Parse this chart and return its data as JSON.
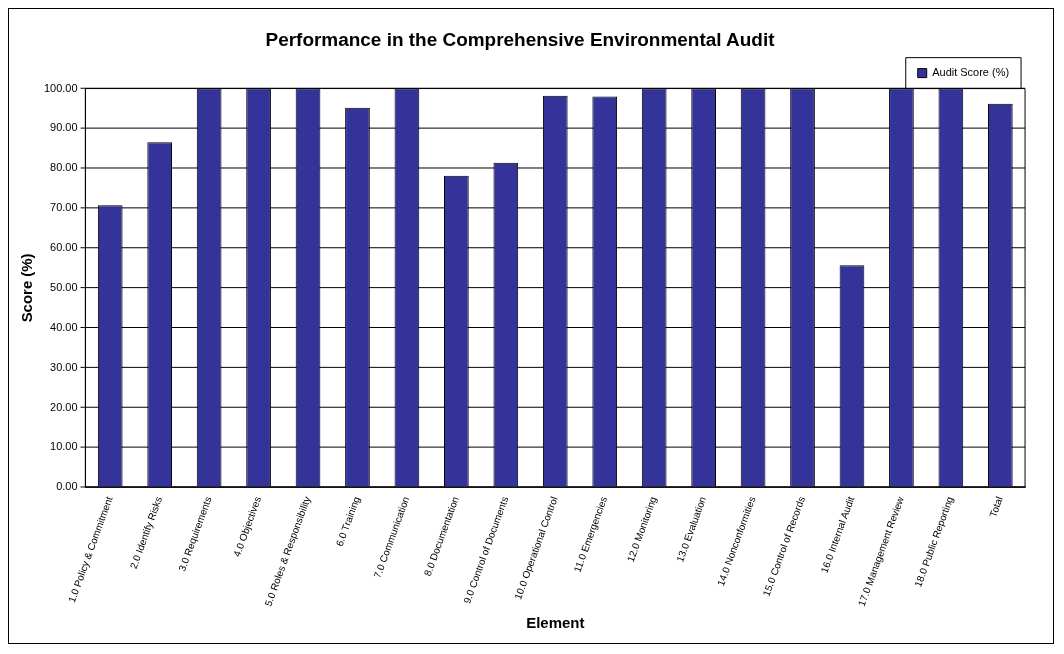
{
  "chart_data": {
    "type": "bar",
    "title": "Performance in the Comprehensive Environmental Audit",
    "xlabel": "Element",
    "ylabel": "Score (%)",
    "categories": [
      "1.0 Policy & Commitment",
      "2.0 Identify Risks",
      "3.0 Requirements",
      "4.0 Objectives",
      "5.0 Roles & Responsibility",
      "6.0 Training",
      "7.0 Communication",
      "8.0 Documentation",
      "9.0 Control of Documents",
      "10.0 Operational Control",
      "11.0 Emergencies",
      "12.0 Monitoring",
      "13.0 Evaluation",
      "14.0 Nonconformities",
      "15.0 Control of Records",
      "16.0 Internal Audit",
      "17.0 Management Review",
      "18.0 Public Reporting",
      "Total"
    ],
    "series": [
      {
        "name": "Audit Score (%)",
        "color": "#333399",
        "values": [
          70.7,
          86.5,
          100,
          100,
          100,
          95.2,
          100,
          78.1,
          81.4,
          98.2,
          98.0,
          100,
          100,
          100,
          100,
          55.7,
          100,
          100,
          96.2
        ]
      }
    ],
    "ylim": [
      0,
      100
    ],
    "yticks": [
      {
        "value": 0,
        "label": "0.00"
      },
      {
        "value": 10,
        "label": "10.00"
      },
      {
        "value": 20,
        "label": "20.00"
      },
      {
        "value": 30,
        "label": "30.00"
      },
      {
        "value": 40,
        "label": "40.00"
      },
      {
        "value": 50,
        "label": "50.00"
      },
      {
        "value": 60,
        "label": "60.00"
      },
      {
        "value": 70,
        "label": "70.00"
      },
      {
        "value": 80,
        "label": "80.00"
      },
      {
        "value": 90,
        "label": "90.00"
      },
      {
        "value": 100,
        "label": "100.00"
      }
    ],
    "grid": "y",
    "legend": "top right"
  }
}
